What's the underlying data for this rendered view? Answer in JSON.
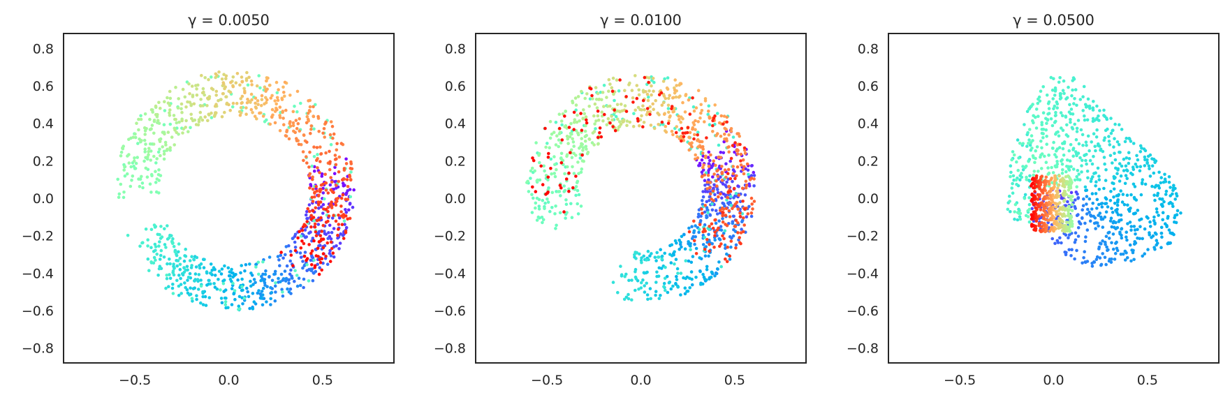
{
  "chart_data": [
    {
      "type": "scatter",
      "title": "γ = 0.0050",
      "xlabel": "",
      "ylabel": "",
      "xlim": [
        -0.88,
        0.88
      ],
      "ylim": [
        -0.88,
        0.88
      ],
      "xticks": [
        -0.5,
        0.0,
        0.5
      ],
      "xtick_labels": [
        "−0.5",
        "0.0",
        "0.5"
      ],
      "yticks": [
        0.8,
        0.6,
        0.4,
        0.2,
        0.0,
        -0.2,
        -0.4,
        -0.6,
        -0.8
      ],
      "ytick_labels": [
        "0.8",
        "0.6",
        "0.4",
        "0.2",
        "0.0",
        "−0.2",
        "−0.4",
        "−0.6",
        "−0.8"
      ],
      "grid": false,
      "colormap": "rainbow",
      "point_size": 2.3,
      "shape": "annulus",
      "n_points": 1200,
      "center": [
        0.03,
        0.04
      ],
      "inner_radius": 0.4,
      "outer_radius": 0.64,
      "color_path": [
        {
          "t": 0.0,
          "angle_deg": 10
        },
        {
          "t": 0.1,
          "angle_deg": -30
        },
        {
          "t": 0.2,
          "angle_deg": -70
        },
        {
          "t": 0.3,
          "angle_deg": -110
        },
        {
          "t": 0.4,
          "angle_deg": -150
        },
        {
          "t": 0.5,
          "angle_deg": 180
        },
        {
          "t": 0.6,
          "angle_deg": 135
        },
        {
          "t": 0.7,
          "angle_deg": 90
        },
        {
          "t": 0.8,
          "angle_deg": 45
        },
        {
          "t": 0.9,
          "angle_deg": 0
        },
        {
          "t": 1.0,
          "angle_deg": -45
        }
      ]
    },
    {
      "type": "scatter",
      "title": "γ = 0.0100",
      "xlabel": "",
      "ylabel": "",
      "xlim": [
        -0.88,
        0.88
      ],
      "ylim": [
        -0.88,
        0.88
      ],
      "xticks": [
        -0.5,
        0.0,
        0.5
      ],
      "xtick_labels": [
        "−0.5",
        "0.0",
        "0.5"
      ],
      "yticks": [
        0.8,
        0.6,
        0.4,
        0.2,
        0.0,
        -0.2,
        -0.4,
        -0.6,
        -0.8
      ],
      "ytick_labels": [
        "0.8",
        "0.6",
        "0.4",
        "0.2",
        "0.0",
        "−0.2",
        "−0.4",
        "−0.6",
        "−0.8"
      ],
      "grid": false,
      "colormap": "rainbow",
      "point_size": 2.3,
      "shape": "annulus",
      "n_points": 1200,
      "center": [
        0.0,
        0.05
      ],
      "inner_radius": 0.33,
      "outer_radius": 0.61,
      "color_path": [
        {
          "t": 0.0,
          "angle_deg": 25
        },
        {
          "t": 0.12,
          "angle_deg": -10
        },
        {
          "t": 0.25,
          "angle_deg": -60
        },
        {
          "t": 0.35,
          "angle_deg": -100
        },
        {
          "t": 0.45,
          "angle_deg": 200
        },
        {
          "t": 0.55,
          "angle_deg": 150
        },
        {
          "t": 0.65,
          "angle_deg": 105
        },
        {
          "t": 0.75,
          "angle_deg": 60
        },
        {
          "t": 0.85,
          "angle_deg": 10
        },
        {
          "t": 0.93,
          "angle_deg": -40
        },
        {
          "t": 1.0,
          "angle_deg": 190
        }
      ]
    },
    {
      "type": "scatter",
      "title": "γ = 0.0500",
      "xlabel": "",
      "ylabel": "",
      "xlim": [
        -0.88,
        0.88
      ],
      "ylim": [
        -0.88,
        0.88
      ],
      "xticks": [
        -0.5,
        0.0,
        0.5
      ],
      "xtick_labels": [
        "−0.5",
        "0.0",
        "0.5"
      ],
      "yticks": [
        0.8,
        0.6,
        0.4,
        0.2,
        0.0,
        -0.2,
        -0.4,
        -0.6,
        -0.8
      ],
      "ytick_labels": [
        "0.8",
        "0.6",
        "0.4",
        "0.2",
        "0.0",
        "−0.2",
        "−0.4",
        "−0.6",
        "−0.8"
      ],
      "grid": false,
      "colormap": "rainbow",
      "point_size": 2.3,
      "shape": "folded",
      "n_points": 1200,
      "outline": [
        [
          -0.25,
          0.0
        ],
        [
          -0.22,
          0.3
        ],
        [
          -0.1,
          0.55
        ],
        [
          0.02,
          0.69
        ],
        [
          0.15,
          0.62
        ],
        [
          0.4,
          0.35
        ],
        [
          0.6,
          0.15
        ],
        [
          0.7,
          -0.05
        ],
        [
          0.62,
          -0.25
        ],
        [
          0.4,
          -0.35
        ],
        [
          0.15,
          -0.37
        ],
        [
          0.0,
          -0.25
        ],
        [
          -0.1,
          -0.15
        ],
        [
          -0.25,
          -0.1
        ]
      ],
      "cluster": {
        "center": [
          0.0,
          -0.05
        ],
        "x_range": [
          -0.12,
          0.1
        ],
        "y_range": [
          -0.18,
          0.12
        ],
        "t_range": [
          0.55,
          1.0
        ]
      }
    }
  ]
}
